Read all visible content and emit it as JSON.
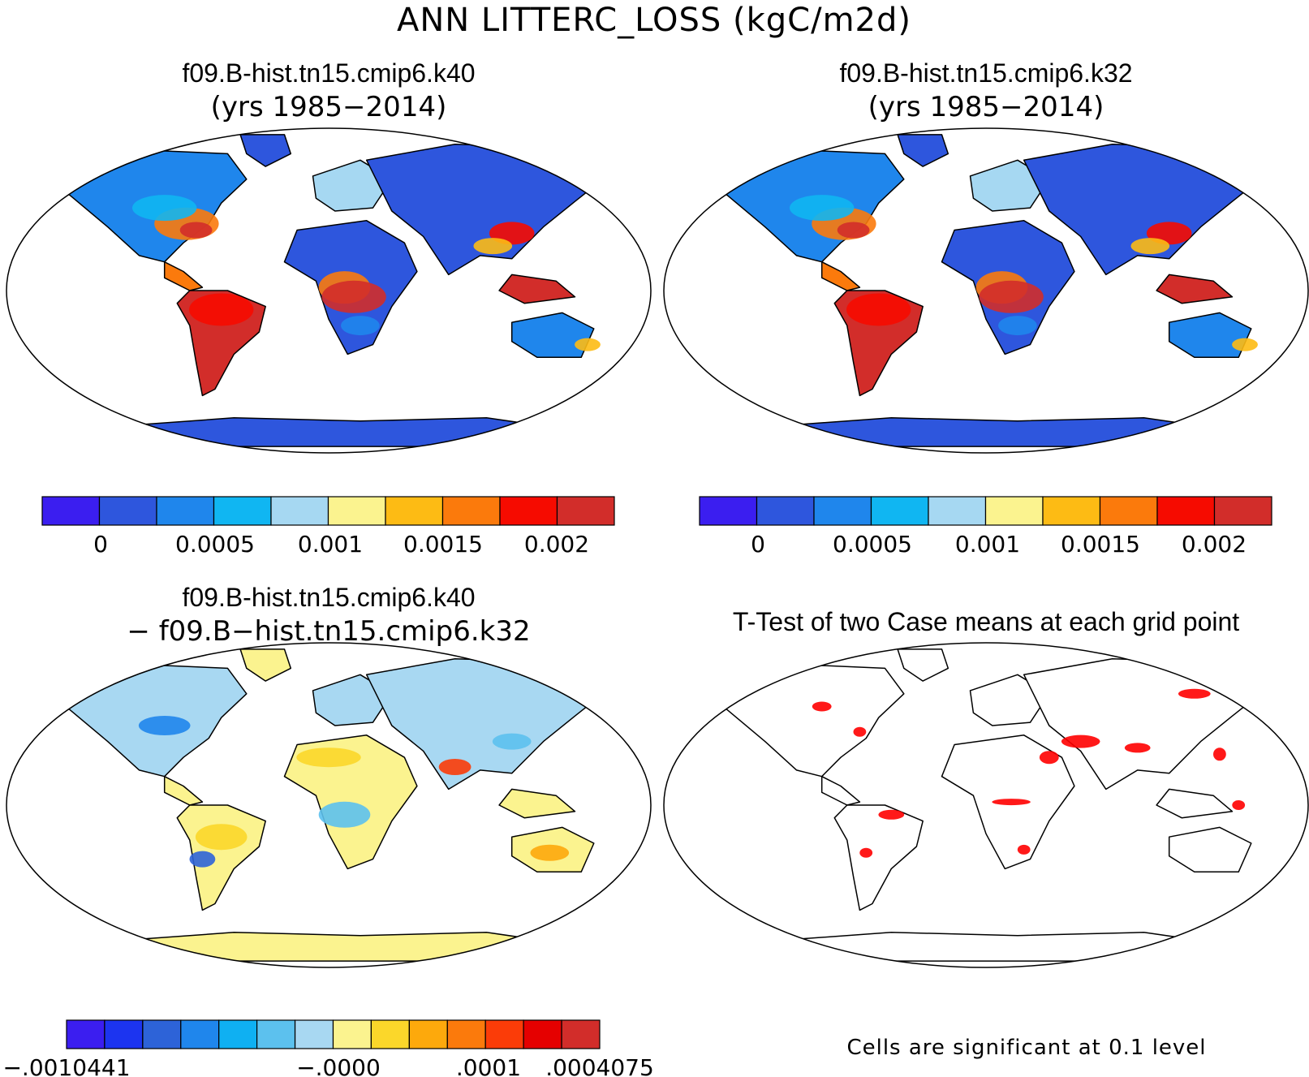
{
  "title": "ANN LITTERC_LOSS (kgC/m2d)",
  "panels": {
    "top_left": {
      "case": "f09.B-hist.tn15.cmip6.k40",
      "years": "(yrs 1985−2014)"
    },
    "top_right": {
      "case": "f09.B-hist.tn15.cmip6.k32",
      "years": "(yrs 1985−2014)"
    },
    "bottom_left": {
      "case": "f09.B-hist.tn15.cmip6.k40",
      "minus": "− f09.B−hist.tn15.cmip6.k32"
    },
    "bottom_right": {
      "title": "T-Test of two Case means at each grid point",
      "note": "Cells are significant at 0.1 level"
    }
  },
  "chart_data": [
    {
      "type": "heatmap",
      "panel": "top_left",
      "colorbar": {
        "colors": [
          "#3b1ef0",
          "#2e56dd",
          "#1f86ec",
          "#10b6f2",
          "#a6d8f2",
          "#fbf38f",
          "#fdbb14",
          "#fb7a0c",
          "#f60b00",
          "#d22d2a"
        ],
        "tick_labels": [
          "0",
          "0.0005",
          "0.001",
          "0.0015",
          "0.002"
        ]
      }
    },
    {
      "type": "heatmap",
      "panel": "top_right",
      "colorbar": {
        "colors": [
          "#3b1ef0",
          "#2e56dd",
          "#1f86ec",
          "#10b6f2",
          "#a6d8f2",
          "#fbf38f",
          "#fdbb14",
          "#fb7a0c",
          "#f60b00",
          "#d22d2a"
        ],
        "tick_labels": [
          "0",
          "0.0005",
          "0.001",
          "0.0015",
          "0.002"
        ]
      }
    },
    {
      "type": "heatmap",
      "panel": "bottom_left",
      "colorbar": {
        "colors": [
          "#3b1ef0",
          "#1c34f0",
          "#2d63d8",
          "#1f86ec",
          "#0fb0f2",
          "#5cc1ee",
          "#a8d8f2",
          "#fbf38f",
          "#fbd72a",
          "#fda90c",
          "#fb7a0c",
          "#fb3c08",
          "#e50000",
          "#d22d2a"
        ],
        "tick_labels": [
          "−.0010441",
          "−.0000",
          ".0001",
          ".0004075"
        ]
      }
    },
    {
      "type": "heatmap",
      "panel": "bottom_right",
      "significant_color": "#ff0000"
    }
  ]
}
